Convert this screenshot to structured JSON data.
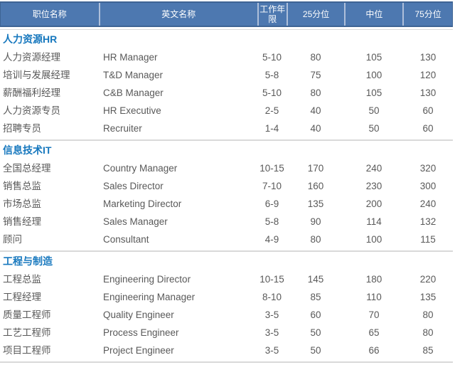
{
  "table": {
    "columns": [
      {
        "label": "职位名称"
      },
      {
        "label": "英文名称"
      },
      {
        "label": "工作年限"
      },
      {
        "label": "25分位"
      },
      {
        "label": "中位"
      },
      {
        "label": "75分位"
      }
    ],
    "sections": [
      {
        "title": "人力资源HR",
        "rows": [
          [
            "人力资源经理",
            "HR Manager",
            "5-10",
            "80",
            "105",
            "130"
          ],
          [
            "培训与发展经理",
            "T&D Manager",
            "5-8",
            "75",
            "100",
            "120"
          ],
          [
            "薪酬福利经理",
            "C&B Manager",
            "5-10",
            "80",
            "105",
            "130"
          ],
          [
            "人力资源专员",
            "HR Executive",
            "2-5",
            "40",
            "50",
            "60"
          ],
          [
            "招聘专员",
            "Recruiter",
            "1-4",
            "40",
            "50",
            "60"
          ]
        ]
      },
      {
        "title": "信息技术IT",
        "rows": [
          [
            "全国总经理",
            "Country Manager",
            "10-15",
            "170",
            "240",
            "320"
          ],
          [
            "销售总监",
            "Sales Director",
            "7-10",
            "160",
            "230",
            "300"
          ],
          [
            "市场总监",
            "Marketing Director",
            "6-9",
            "135",
            "200",
            "240"
          ],
          [
            "销售经理",
            "Sales Manager",
            "5-8",
            "90",
            "114",
            "132"
          ],
          [
            "顾问",
            "Consultant",
            "4-9",
            "80",
            "100",
            "115"
          ]
        ]
      },
      {
        "title": "工程与制造",
        "rows": [
          [
            "工程总监",
            "Engineering Director",
            "10-15",
            "145",
            "180",
            "220"
          ],
          [
            "工程经理",
            "Engineering Manager",
            "8-10",
            "85",
            "110",
            "135"
          ],
          [
            "质量工程师",
            "Quality Engineer",
            "3-5",
            "60",
            "70",
            "80"
          ],
          [
            "工艺工程师",
            "Process Engineer",
            "3-5",
            "50",
            "65",
            "80"
          ],
          [
            "项目工程师",
            "Project Engineer",
            "3-5",
            "50",
            "66",
            "85"
          ]
        ]
      }
    ]
  },
  "colors": {
    "header_bg": "#4d78b0",
    "header_border": "#3e6494",
    "header_text": "#ffffff",
    "separator": "#aebfda",
    "section_title": "#1778be",
    "row_text": "#595959",
    "divider": "#d9d9d9"
  }
}
